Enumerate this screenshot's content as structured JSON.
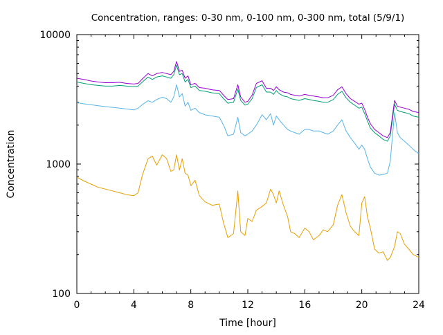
{
  "chart_data": {
    "type": "line",
    "title": "Concentration, ranges: 0-30 nm, 0-100 nm, 0-300 nm, total (5/9/1)",
    "xlabel": "Time [hour]",
    "ylabel": "Concentration",
    "xlim": [
      0,
      24
    ],
    "ylim": [
      100,
      10000
    ],
    "yscale": "log",
    "grid": false,
    "legend": "none",
    "xticks": [
      0,
      4,
      8,
      12,
      16,
      20,
      24
    ],
    "xtick_labels": [
      "0",
      "4",
      "8",
      "12",
      "16",
      "20",
      "24"
    ],
    "yticks": [
      100,
      1000,
      10000
    ],
    "ytick_labels": [
      "100",
      "1000",
      "10000"
    ],
    "series": [
      {
        "color": "#e69f00",
        "x": [
          0,
          0.5,
          1,
          1.5,
          2,
          2.5,
          3,
          3.5,
          4,
          4.3,
          4.6,
          5,
          5.3,
          5.6,
          6,
          6.3,
          6.6,
          6.8,
          7,
          7.2,
          7.4,
          7.6,
          7.8,
          8,
          8.3,
          8.6,
          9,
          9.5,
          10,
          10.3,
          10.6,
          11,
          11.3,
          11.5,
          11.8,
          12,
          12.3,
          12.6,
          13,
          13.3,
          13.6,
          13.8,
          14,
          14.2,
          14.5,
          14.8,
          15,
          15.3,
          15.6,
          16,
          16.3,
          16.6,
          17,
          17.3,
          17.6,
          18,
          18.3,
          18.6,
          18.9,
          19.2,
          19.5,
          19.8,
          20,
          20.2,
          20.4,
          20.6,
          20.9,
          21.2,
          21.5,
          21.8,
          22,
          22.3,
          22.5,
          22.7,
          23,
          23.3,
          23.6,
          24
        ],
        "values": [
          790,
          740,
          700,
          660,
          640,
          620,
          600,
          580,
          570,
          600,
          820,
          1100,
          1150,
          980,
          1180,
          1100,
          880,
          900,
          1180,
          900,
          1100,
          850,
          820,
          680,
          750,
          570,
          510,
          480,
          490,
          350,
          270,
          290,
          620,
          300,
          280,
          380,
          360,
          440,
          470,
          500,
          640,
          580,
          500,
          620,
          480,
          390,
          300,
          290,
          270,
          320,
          300,
          260,
          280,
          310,
          300,
          340,
          480,
          580,
          420,
          330,
          300,
          280,
          500,
          560,
          390,
          320,
          220,
          205,
          210,
          180,
          190,
          230,
          300,
          290,
          240,
          220,
          200,
          190
        ]
      },
      {
        "color": "#56b4e9",
        "x": [
          0,
          0.5,
          1,
          1.5,
          2,
          2.5,
          3,
          3.5,
          4,
          4.3,
          4.6,
          5,
          5.3,
          5.6,
          6,
          6.3,
          6.6,
          6.8,
          7,
          7.2,
          7.4,
          7.6,
          7.8,
          8,
          8.3,
          8.6,
          9,
          9.5,
          10,
          10.3,
          10.6,
          11,
          11.3,
          11.5,
          11.8,
          12,
          12.3,
          12.6,
          13,
          13.3,
          13.6,
          13.8,
          14,
          14.2,
          14.5,
          14.8,
          15,
          15.3,
          15.6,
          16,
          16.3,
          16.6,
          17,
          17.3,
          17.6,
          18,
          18.3,
          18.6,
          18.9,
          19.2,
          19.5,
          19.8,
          20,
          20.2,
          20.4,
          20.6,
          20.9,
          21.2,
          21.5,
          21.8,
          22,
          22.3,
          22.5,
          22.7,
          23,
          23.3,
          23.6,
          24
        ],
        "values": [
          2980,
          2920,
          2870,
          2820,
          2780,
          2740,
          2700,
          2660,
          2620,
          2700,
          2880,
          3080,
          3000,
          3150,
          3280,
          3200,
          3000,
          3300,
          4100,
          3300,
          3500,
          2800,
          3000,
          2600,
          2700,
          2500,
          2400,
          2350,
          2300,
          2000,
          1650,
          1700,
          2300,
          1750,
          1650,
          1700,
          1800,
          2000,
          2400,
          2200,
          2450,
          2000,
          2350,
          2200,
          2000,
          1850,
          1800,
          1750,
          1700,
          1850,
          1850,
          1800,
          1800,
          1750,
          1700,
          1800,
          2000,
          2200,
          1800,
          1600,
          1450,
          1300,
          1400,
          1300,
          1100,
          950,
          850,
          820,
          830,
          850,
          1050,
          2500,
          1750,
          1600,
          1500,
          1400,
          1300,
          1200
        ]
      },
      {
        "color": "#009e73",
        "x": [
          0,
          0.5,
          1,
          1.5,
          2,
          2.5,
          3,
          3.5,
          4,
          4.3,
          4.6,
          5,
          5.3,
          5.6,
          6,
          6.3,
          6.6,
          6.8,
          7,
          7.2,
          7.4,
          7.6,
          7.8,
          8,
          8.3,
          8.6,
          9,
          9.5,
          10,
          10.3,
          10.6,
          11,
          11.3,
          11.5,
          11.8,
          12,
          12.3,
          12.6,
          13,
          13.3,
          13.6,
          13.8,
          14,
          14.2,
          14.5,
          14.8,
          15,
          15.3,
          15.6,
          16,
          16.3,
          16.6,
          17,
          17.3,
          17.6,
          18,
          18.3,
          18.6,
          18.9,
          19.2,
          19.5,
          19.8,
          20,
          20.2,
          20.4,
          20.6,
          20.9,
          21.2,
          21.5,
          21.8,
          22,
          22.3,
          22.5,
          22.7,
          23,
          23.3,
          23.6,
          24
        ],
        "values": [
          4300,
          4200,
          4100,
          4050,
          4000,
          4000,
          4050,
          4000,
          3950,
          4000,
          4300,
          4700,
          4500,
          4700,
          4800,
          4700,
          4600,
          4900,
          5800,
          4900,
          5000,
          4300,
          4500,
          3900,
          4000,
          3700,
          3650,
          3550,
          3500,
          3200,
          2950,
          3000,
          3800,
          3100,
          2850,
          2900,
          3200,
          3900,
          4100,
          3600,
          3600,
          3450,
          3700,
          3500,
          3350,
          3300,
          3200,
          3150,
          3100,
          3200,
          3150,
          3100,
          3050,
          3000,
          3000,
          3150,
          3450,
          3650,
          3250,
          3000,
          2850,
          2700,
          2750,
          2450,
          2150,
          1900,
          1750,
          1650,
          1550,
          1500,
          1650,
          2900,
          2600,
          2550,
          2500,
          2450,
          2350,
          2300
        ]
      },
      {
        "color": "#9400d3",
        "x": [
          0,
          0.5,
          1,
          1.5,
          2,
          2.5,
          3,
          3.5,
          4,
          4.3,
          4.6,
          5,
          5.3,
          5.6,
          6,
          6.3,
          6.6,
          6.8,
          7,
          7.2,
          7.4,
          7.6,
          7.8,
          8,
          8.3,
          8.6,
          9,
          9.5,
          10,
          10.3,
          10.6,
          11,
          11.3,
          11.5,
          11.8,
          12,
          12.3,
          12.6,
          13,
          13.3,
          13.6,
          13.8,
          14,
          14.2,
          14.5,
          14.8,
          15,
          15.3,
          15.6,
          16,
          16.3,
          16.6,
          17,
          17.3,
          17.6,
          18,
          18.3,
          18.6,
          18.9,
          19.2,
          19.5,
          19.8,
          20,
          20.2,
          20.4,
          20.6,
          20.9,
          21.2,
          21.5,
          21.8,
          22,
          22.3,
          22.5,
          22.7,
          23,
          23.3,
          23.6,
          24
        ],
        "values": [
          4600,
          4500,
          4380,
          4300,
          4250,
          4250,
          4280,
          4200,
          4150,
          4200,
          4550,
          5000,
          4800,
          5000,
          5100,
          5000,
          4900,
          5200,
          6200,
          5200,
          5300,
          4600,
          4800,
          4100,
          4200,
          3900,
          3850,
          3750,
          3700,
          3400,
          3150,
          3200,
          4100,
          3300,
          3000,
          3050,
          3400,
          4200,
          4400,
          3850,
          3850,
          3700,
          3950,
          3750,
          3600,
          3550,
          3450,
          3400,
          3350,
          3450,
          3400,
          3350,
          3300,
          3250,
          3250,
          3400,
          3750,
          3950,
          3500,
          3200,
          3050,
          2900,
          2950,
          2650,
          2300,
          2050,
          1850,
          1750,
          1650,
          1600,
          1750,
          3100,
          2800,
          2750,
          2700,
          2650,
          2550,
          2500
        ]
      }
    ]
  }
}
